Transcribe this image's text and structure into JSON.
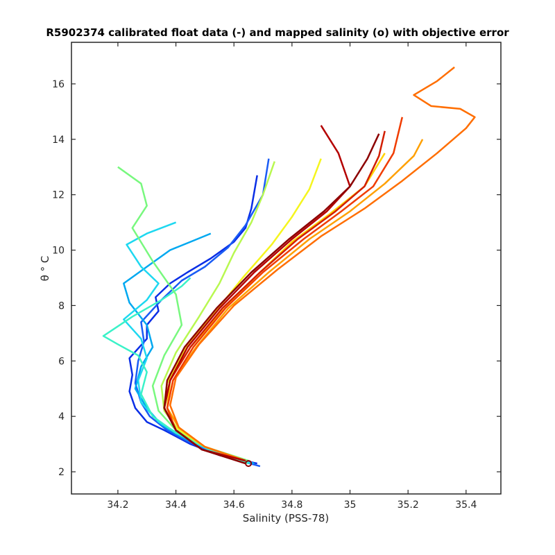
{
  "chart_data": {
    "type": "line",
    "title": "R5902374 calibrated float data (-) and mapped salinity (o) with objective error",
    "xlabel": "Salinity (PSS-78)",
    "ylabel": "θ ° C",
    "xlim": [
      34.04,
      35.52
    ],
    "ylim": [
      1.2,
      17.5
    ],
    "x_ticks": [
      "34.2",
      "34.4",
      "34.6",
      "34.8",
      "35",
      "35.2",
      "35.4"
    ],
    "y_ticks": [
      "2",
      "4",
      "6",
      "8",
      "10",
      "12",
      "14",
      "16"
    ],
    "colormap": "jet",
    "grid": false,
    "series": [
      {
        "color": "#0a2ee6",
        "x": [
          34.68,
          34.55,
          34.45,
          34.36,
          34.3,
          34.26,
          34.24,
          34.25,
          34.24,
          34.3,
          34.3,
          34.34,
          34.33,
          34.38,
          34.44,
          34.52,
          34.6,
          34.64,
          34.66,
          34.68
        ],
        "y": [
          2.3,
          2.6,
          3.0,
          3.5,
          3.8,
          4.3,
          4.9,
          5.5,
          6.1,
          6.8,
          7.3,
          7.8,
          8.3,
          8.8,
          9.2,
          9.7,
          10.3,
          10.8,
          11.5,
          12.7
        ]
      },
      {
        "color": "#1a5cf5",
        "x": [
          34.69,
          34.55,
          34.44,
          34.37,
          34.31,
          34.28,
          34.26,
          34.27,
          34.29,
          34.28,
          34.35,
          34.42,
          34.5,
          34.58,
          34.64,
          34.7,
          34.72
        ],
        "y": [
          2.2,
          2.6,
          3.1,
          3.5,
          4.0,
          4.5,
          5.2,
          6.0,
          6.7,
          7.4,
          8.2,
          8.9,
          9.4,
          10.1,
          10.9,
          12.0,
          13.3
        ]
      },
      {
        "color": "#00a8f0",
        "x": [
          34.67,
          34.54,
          34.43,
          34.35,
          34.3,
          34.26,
          34.28,
          34.32,
          34.3,
          34.24,
          34.22,
          34.3,
          34.38,
          34.45,
          34.52
        ],
        "y": [
          2.3,
          2.7,
          3.2,
          3.7,
          4.3,
          5.0,
          5.8,
          6.5,
          7.3,
          8.1,
          8.8,
          9.4,
          10.0,
          10.3,
          10.6
        ]
      },
      {
        "color": "#1ed8f0",
        "x": [
          34.66,
          34.53,
          34.42,
          34.34,
          34.28,
          34.27,
          34.3,
          34.28,
          34.22,
          34.3,
          34.34,
          34.28,
          34.23,
          34.3,
          34.4
        ],
        "y": [
          2.3,
          2.7,
          3.3,
          3.8,
          4.5,
          5.3,
          6.1,
          6.8,
          7.5,
          8.2,
          8.8,
          9.4,
          10.2,
          10.6,
          11.0
        ]
      },
      {
        "color": "#3af2c8",
        "x": [
          34.65,
          34.52,
          34.4,
          34.32,
          34.28,
          34.3,
          34.27,
          34.2,
          34.15,
          34.25,
          34.35,
          34.42,
          34.45
        ],
        "y": [
          2.3,
          2.8,
          3.4,
          4.0,
          4.8,
          5.6,
          6.2,
          6.6,
          6.9,
          7.6,
          8.2,
          8.7,
          9.0
        ]
      },
      {
        "color": "#78f87e",
        "x": [
          34.65,
          34.5,
          34.4,
          34.34,
          34.32,
          34.36,
          34.42,
          34.4,
          34.32,
          34.25,
          34.3,
          34.28,
          34.2
        ],
        "y": [
          2.4,
          2.9,
          3.5,
          4.2,
          5.1,
          6.2,
          7.3,
          8.4,
          9.6,
          10.8,
          11.6,
          12.4,
          13.0
        ]
      },
      {
        "color": "#b8f850",
        "x": [
          34.64,
          34.5,
          34.41,
          34.36,
          34.35,
          34.4,
          34.48,
          34.55,
          34.6,
          34.66,
          34.7,
          34.74
        ],
        "y": [
          2.4,
          2.9,
          3.5,
          4.2,
          5.1,
          6.3,
          7.6,
          8.8,
          9.9,
          11.0,
          12.0,
          13.2
        ]
      },
      {
        "color": "#f5f51e",
        "x": [
          34.64,
          34.5,
          34.4,
          34.36,
          34.37,
          34.43,
          34.53,
          34.63,
          34.73,
          34.8,
          34.86,
          34.9
        ],
        "y": [
          2.4,
          2.9,
          3.6,
          4.3,
          5.2,
          6.4,
          7.7,
          9.0,
          10.2,
          11.2,
          12.2,
          13.3
        ]
      },
      {
        "color": "#ffd200",
        "x": [
          34.64,
          34.5,
          34.41,
          34.37,
          34.38,
          34.45,
          34.56,
          34.68,
          34.8,
          34.93,
          35.05,
          35.12
        ],
        "y": [
          2.4,
          2.9,
          3.6,
          4.3,
          5.3,
          6.5,
          7.8,
          9.1,
          10.3,
          11.3,
          12.3,
          13.5
        ]
      },
      {
        "color": "#ffa000",
        "x": [
          34.64,
          34.5,
          34.41,
          34.37,
          34.39,
          34.47,
          34.58,
          34.72,
          34.86,
          35.0,
          35.12,
          35.22,
          35.25
        ],
        "y": [
          2.4,
          2.9,
          3.6,
          4.3,
          5.3,
          6.5,
          7.9,
          9.2,
          10.4,
          11.4,
          12.4,
          13.4,
          14.0
        ]
      },
      {
        "color": "#ff6e00",
        "x": [
          34.64,
          34.5,
          34.41,
          34.38,
          34.4,
          34.48,
          34.6,
          34.75,
          34.9,
          35.05,
          35.18,
          35.3,
          35.4,
          35.43,
          35.38,
          35.28,
          35.22,
          35.3,
          35.36
        ],
        "y": [
          2.4,
          2.9,
          3.6,
          4.4,
          5.4,
          6.6,
          8.0,
          9.3,
          10.5,
          11.5,
          12.5,
          13.5,
          14.4,
          14.8,
          15.1,
          15.2,
          15.6,
          16.1,
          16.6
        ]
      },
      {
        "color": "#f03c00",
        "x": [
          34.64,
          34.49,
          34.4,
          34.37,
          34.39,
          34.46,
          34.57,
          34.7,
          34.84,
          34.97,
          35.08,
          35.15,
          35.18
        ],
        "y": [
          2.4,
          2.8,
          3.5,
          4.3,
          5.3,
          6.5,
          7.9,
          9.2,
          10.4,
          11.4,
          12.3,
          13.5,
          14.8
        ]
      },
      {
        "color": "#d21e00",
        "x": [
          34.64,
          34.49,
          34.4,
          34.36,
          34.38,
          34.45,
          34.56,
          34.69,
          34.82,
          34.95,
          35.05,
          35.1,
          35.12
        ],
        "y": [
          2.4,
          2.8,
          3.5,
          4.3,
          5.3,
          6.5,
          7.9,
          9.2,
          10.4,
          11.4,
          12.3,
          13.4,
          14.3
        ]
      },
      {
        "color": "#b40000",
        "x": [
          34.64,
          34.49,
          34.4,
          34.36,
          34.38,
          34.44,
          34.55,
          34.67,
          34.8,
          34.92,
          35.0,
          34.96,
          34.9
        ],
        "y": [
          2.4,
          2.8,
          3.5,
          4.3,
          5.3,
          6.5,
          7.9,
          9.2,
          10.4,
          11.4,
          12.3,
          13.5,
          14.5
        ]
      },
      {
        "color": "#8c0000",
        "x": [
          34.64,
          34.49,
          34.4,
          34.36,
          34.37,
          34.43,
          34.54,
          34.66,
          34.79,
          34.91,
          35.0,
          35.06,
          35.1
        ],
        "y": [
          2.3,
          2.8,
          3.5,
          4.3,
          5.3,
          6.5,
          7.9,
          9.2,
          10.4,
          11.4,
          12.3,
          13.3,
          14.2
        ]
      }
    ],
    "mapped_points": {
      "color": "#8c0000",
      "x": [
        34.65
      ],
      "y": [
        2.3
      ]
    }
  }
}
